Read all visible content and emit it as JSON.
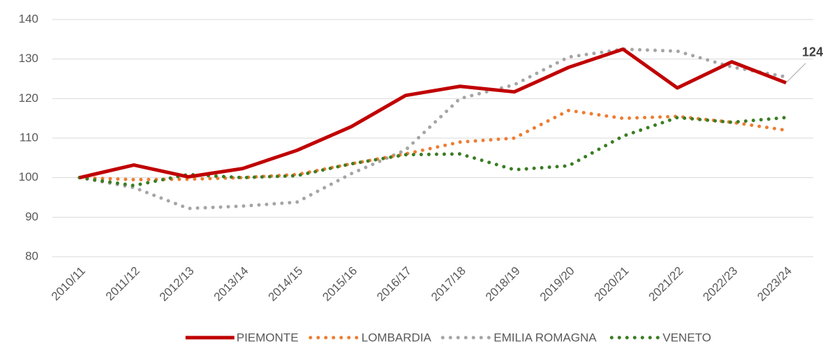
{
  "chart_data": {
    "type": "line",
    "categories": [
      "2010/11",
      "2011/12",
      "2012/13",
      "2013/14",
      "2014/15",
      "2015/16",
      "2016/17",
      "2017/18",
      "2018/19",
      "2019/20",
      "2020/21",
      "2021/22",
      "2022/23",
      "2023/24"
    ],
    "series": [
      {
        "name": "PIEMONTE",
        "color": "#c00000",
        "dash": "solid",
        "values": [
          100,
          103.2,
          100.2,
          102.3,
          106.9,
          112.9,
          120.8,
          123.1,
          121.7,
          127.9,
          132.5,
          122.7,
          129.3,
          124
        ]
      },
      {
        "name": "LOMBARDIA",
        "color": "#ed7d31",
        "dash": "dotted",
        "values": [
          100,
          99.5,
          99.6,
          100,
          100.8,
          103.5,
          106,
          109,
          110,
          117,
          115,
          115.5,
          114,
          112
        ]
      },
      {
        "name": "EMILIA ROMAGNA",
        "color": "#a5a5a5",
        "dash": "dotted",
        "values": [
          100,
          97.5,
          92.2,
          92.8,
          93.8,
          101,
          107,
          120,
          123.5,
          130.5,
          132.5,
          132,
          128,
          125.5
        ]
      },
      {
        "name": "VENETO",
        "color": "#3a7d22",
        "dash": "dotted",
        "values": [
          100,
          98,
          100.8,
          100,
          100.5,
          103.5,
          105.8,
          106,
          102,
          103,
          110.5,
          115.2,
          114,
          115.2
        ]
      }
    ],
    "ylim": [
      80,
      140
    ],
    "yticks": [
      80,
      90,
      100,
      110,
      120,
      130,
      140
    ],
    "grid": true,
    "legend": "bottom"
  }
}
